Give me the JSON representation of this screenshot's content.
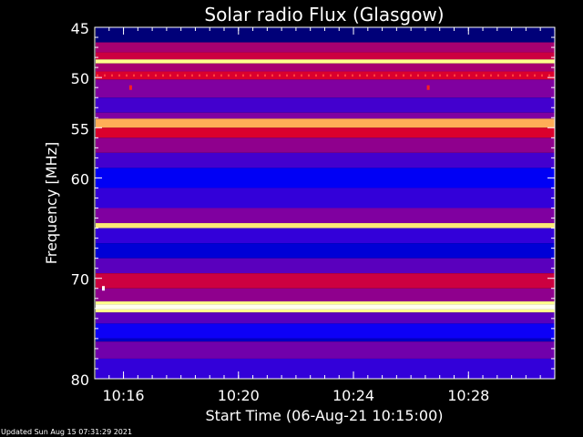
{
  "chart_data": {
    "type": "heatmap",
    "title": "Solar radio Flux (Glasgow)",
    "xlabel": "Start Time (06-Aug-21 10:15:00)",
    "ylabel": "Frequency [MHz]",
    "x_range_minutes": [
      10.25,
      10.5167
    ],
    "x_ticks": [
      {
        "value_min": 16,
        "label": "10:16"
      },
      {
        "value_min": 20,
        "label": "10:20"
      },
      {
        "value_min": 24,
        "label": "10:24"
      },
      {
        "value_min": 28,
        "label": "10:28"
      }
    ],
    "ylim": [
      45,
      80
    ],
    "y_axis_reversed": true,
    "y_ticks": [
      45,
      50,
      55,
      60,
      70,
      80
    ],
    "colormap": [
      "#000033",
      "#000080",
      "#0000ff",
      "#8000a0",
      "#ff0000",
      "#ffff80",
      "#ffffff"
    ],
    "bands": [
      {
        "from": 45.0,
        "to": 46.5,
        "level": 0.15
      },
      {
        "from": 46.5,
        "to": 47.5,
        "level": 0.55
      },
      {
        "from": 47.5,
        "to": 48.2,
        "level": 0.6
      },
      {
        "from": 48.2,
        "to": 48.6,
        "level": 0.85
      },
      {
        "from": 48.6,
        "to": 49.4,
        "level": 0.55
      },
      {
        "from": 49.4,
        "to": 50.2,
        "level": 0.62
      },
      {
        "from": 50.2,
        "to": 52.0,
        "level": 0.5
      },
      {
        "from": 52.0,
        "to": 53.5,
        "level": 0.42
      },
      {
        "from": 53.5,
        "to": 54.1,
        "level": 0.5
      },
      {
        "from": 54.1,
        "to": 55.0,
        "level": 0.78
      },
      {
        "from": 55.0,
        "to": 56.0,
        "level": 0.62
      },
      {
        "from": 56.0,
        "to": 57.5,
        "level": 0.52
      },
      {
        "from": 57.5,
        "to": 59.0,
        "level": 0.42
      },
      {
        "from": 59.0,
        "to": 61.0,
        "level": 0.32
      },
      {
        "from": 61.0,
        "to": 63.0,
        "level": 0.4
      },
      {
        "from": 63.0,
        "to": 64.5,
        "level": 0.5
      },
      {
        "from": 64.5,
        "to": 65.0,
        "level": 0.82
      },
      {
        "from": 65.0,
        "to": 66.5,
        "level": 0.4
      },
      {
        "from": 66.5,
        "to": 68.0,
        "level": 0.28
      },
      {
        "from": 68.0,
        "to": 69.5,
        "level": 0.45
      },
      {
        "from": 69.5,
        "to": 71.0,
        "level": 0.6
      },
      {
        "from": 71.0,
        "to": 72.3,
        "level": 0.52
      },
      {
        "from": 72.3,
        "to": 72.6,
        "level": 0.85
      },
      {
        "from": 72.6,
        "to": 73.1,
        "level": 0.98
      },
      {
        "from": 73.1,
        "to": 73.4,
        "level": 0.85
      },
      {
        "from": 73.4,
        "to": 74.5,
        "level": 0.45
      },
      {
        "from": 74.5,
        "to": 76.0,
        "level": 0.35
      },
      {
        "from": 76.0,
        "to": 76.3,
        "level": 0.25
      },
      {
        "from": 76.3,
        "to": 78.0,
        "level": 0.48
      },
      {
        "from": 78.0,
        "to": 80.0,
        "level": 0.4
      }
    ],
    "features": [
      {
        "kind": "dotted_line",
        "freq": 49.8,
        "color": "#ff4040"
      },
      {
        "kind": "spot",
        "freq": 51.0,
        "time_min": 16.25,
        "color": "#ff2020"
      },
      {
        "kind": "spot",
        "freq": 51.0,
        "time_min": 26.6,
        "color": "#ff2020"
      },
      {
        "kind": "spot",
        "freq": 71.0,
        "time_min": 15.3,
        "color": "#ffffff"
      }
    ]
  },
  "footer": {
    "updated": "Updated Sun Aug 15 07:31:29 2021"
  }
}
